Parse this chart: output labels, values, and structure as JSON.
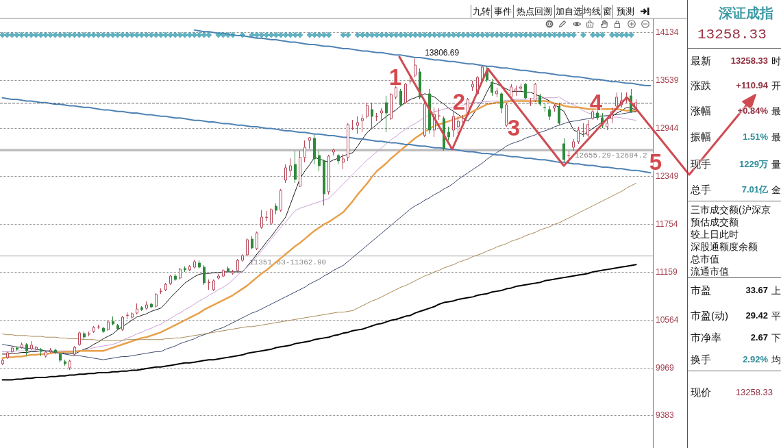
{
  "chart_data": [
    {
      "type": "candlestick",
      "categories": [
        null,
        null,
        null,
        null,
        null,
        null,
        null,
        null,
        null,
        null,
        null,
        null,
        null,
        null,
        null,
        null,
        null,
        null,
        null,
        null,
        null,
        null,
        null,
        null,
        null,
        null,
        null,
        null,
        null,
        null,
        null,
        null,
        null,
        null,
        null,
        null,
        null,
        null,
        null,
        null,
        null,
        null,
        null,
        null,
        null,
        null,
        null,
        null,
        null,
        null,
        null,
        null,
        null,
        null,
        null,
        null,
        null,
        null,
        null,
        null,
        null,
        null,
        null,
        null,
        null,
        null,
        null,
        null,
        null,
        null,
        null,
        null,
        null,
        null,
        null,
        null,
        null,
        null,
        null,
        null,
        null,
        null,
        null,
        null,
        null,
        null,
        null,
        null,
        null,
        null,
        null,
        null,
        null,
        null,
        null,
        null,
        null,
        null,
        null,
        null,
        null,
        null,
        null,
        null,
        null,
        null,
        null,
        null,
        null,
        null,
        null,
        null,
        null,
        null,
        null,
        null,
        null,
        null,
        null,
        null,
        null,
        null,
        null,
        null,
        null,
        null,
        null,
        null,
        null,
        null,
        null,
        null,
        null,
        null,
        null,
        null
      ],
      "ohlc": [
        [
          10020,
          10079,
          10003,
          10063
        ],
        [
          10097,
          10173,
          10079,
          10156
        ],
        [
          10173,
          10241,
          10156,
          10216
        ],
        [
          10216,
          10233,
          10182,
          10199
        ],
        [
          10224,
          10284,
          10207,
          10258
        ],
        [
          10258,
          10275,
          10122,
          10182
        ],
        [
          10207,
          10301,
          10190,
          10250
        ],
        [
          10199,
          10241,
          10182,
          10224
        ],
        [
          10199,
          10216,
          10114,
          10173
        ],
        [
          10114,
          10182,
          10097,
          10165
        ],
        [
          10173,
          10216,
          10156,
          10190
        ],
        [
          10190,
          10207,
          10139,
          10165
        ],
        [
          10139,
          10165,
          10037,
          10063
        ],
        [
          10046,
          10071,
          9995,
          10020
        ],
        [
          9969,
          10071,
          9944,
          10054
        ],
        [
          10139,
          10241,
          10122,
          10224
        ],
        [
          10258,
          10420,
          10241,
          10403
        ],
        [
          10394,
          10420,
          10326,
          10352
        ],
        [
          10386,
          10420,
          10360,
          10394
        ],
        [
          10420,
          10488,
          10403,
          10471
        ],
        [
          10475,
          10505,
          10454,
          10479
        ],
        [
          10462,
          10479,
          10403,
          10420
        ],
        [
          10445,
          10556,
          10428,
          10539
        ],
        [
          10547,
          10607,
          10496,
          10513
        ],
        [
          10496,
          10513,
          10437,
          10454
        ],
        [
          10445,
          10615,
          10428,
          10598
        ],
        [
          10619,
          10658,
          10573,
          10624
        ],
        [
          10598,
          10658,
          10581,
          10641
        ],
        [
          10649,
          10768,
          10632,
          10700
        ],
        [
          10717,
          10734,
          10675,
          10692
        ],
        [
          10709,
          10794,
          10692,
          10751
        ],
        [
          10760,
          10777,
          10709,
          10726
        ],
        [
          10734,
          10896,
          10717,
          10879
        ],
        [
          10917,
          10955,
          10887,
          10921
        ],
        [
          10938,
          11023,
          10921,
          11006
        ],
        [
          11015,
          11125,
          10997,
          11108
        ],
        [
          11108,
          11134,
          11049,
          11066
        ],
        [
          11083,
          11210,
          11066,
          11193
        ],
        [
          11202,
          11227,
          11159,
          11185
        ],
        [
          11185,
          11244,
          11168,
          11227
        ],
        [
          11219,
          11312,
          11202,
          11287
        ],
        [
          11270,
          11304,
          11202,
          11219
        ],
        [
          11219,
          11244,
          10997,
          11023
        ],
        [
          11027,
          11066,
          10938,
          11032
        ],
        [
          10938,
          11066,
          10921,
          11049
        ],
        [
          11083,
          11134,
          11066,
          11108
        ],
        [
          11108,
          11193,
          11091,
          11176
        ],
        [
          11202,
          11227,
          11151,
          11168
        ],
        [
          11142,
          11185,
          11125,
          11159
        ],
        [
          11176,
          11321,
          11159,
          11304
        ],
        [
          11304,
          11380,
          11287,
          11363
        ],
        [
          11372,
          11576,
          11355,
          11559
        ],
        [
          11567,
          11601,
          11440,
          11457
        ],
        [
          11448,
          11661,
          11431,
          11644
        ],
        [
          11712,
          11924,
          11695,
          11839
        ],
        [
          11835,
          11916,
          11788,
          11839
        ],
        [
          11763,
          11950,
          11746,
          11933
        ],
        [
          11975,
          12009,
          11873,
          11924
        ],
        [
          11924,
          12188,
          11907,
          12171
        ],
        [
          12298,
          12494,
          12264,
          12451
        ],
        [
          12417,
          12570,
          12349,
          12477
        ],
        [
          12494,
          12664,
          12264,
          12307
        ],
        [
          12222,
          12664,
          12213,
          12579
        ],
        [
          12579,
          12791,
          12519,
          12706
        ],
        [
          12791,
          12834,
          12689,
          12825
        ],
        [
          12817,
          12859,
          12494,
          12562
        ],
        [
          12604,
          12664,
          12409,
          12477
        ],
        [
          12536,
          12553,
          11984,
          12128
        ],
        [
          12154,
          12613,
          12119,
          12596
        ],
        [
          12647,
          12689,
          12604,
          12672
        ],
        [
          12604,
          12621,
          12494,
          12536
        ],
        [
          12519,
          12621,
          12434,
          12562
        ],
        [
          12579,
          13004,
          12536,
          12987
        ],
        [
          12940,
          13046,
          12919,
          12944
        ],
        [
          12978,
          13089,
          12876,
          13012
        ],
        [
          13037,
          13114,
          12893,
          13063
        ],
        [
          13089,
          13259,
          13063,
          13225
        ],
        [
          13174,
          13259,
          12944,
          13089
        ],
        [
          13084,
          13131,
          13029,
          13089
        ],
        [
          13131,
          13191,
          13029,
          13157
        ],
        [
          13259,
          13344,
          12893,
          13131
        ],
        [
          13063,
          13378,
          13046,
          13361
        ],
        [
          13327,
          13488,
          13301,
          13446
        ],
        [
          13403,
          13429,
          13216,
          13233
        ],
        [
          13259,
          13505,
          13242,
          13488
        ],
        [
          13526,
          13582,
          13488,
          13531
        ],
        [
          13599,
          13806.69,
          13573,
          13726
        ],
        [
          13641,
          13684,
          13301,
          13327
        ],
        [
          12851,
          13276,
          12834,
          13242
        ],
        [
          13369,
          13429,
          12876,
          12919
        ],
        [
          12919,
          13199,
          12834,
          13114
        ],
        [
          13093,
          13191,
          13046,
          13097
        ],
        [
          13063,
          13089,
          12664,
          12689
        ],
        [
          12893,
          12961,
          12791,
          12834
        ],
        [
          12919,
          13148,
          12834,
          13089
        ],
        [
          12961,
          13089,
          12808,
          13029
        ],
        [
          13021,
          13106,
          12978,
          13063
        ],
        [
          13106,
          13318,
          13089,
          13301
        ],
        [
          13454,
          13531,
          13403,
          13488
        ],
        [
          13369,
          13590,
          13352,
          13573
        ],
        [
          13539,
          13718,
          13522,
          13701
        ],
        [
          13658,
          13709,
          13514,
          13539
        ],
        [
          13514,
          13556,
          13344,
          13386
        ],
        [
          13369,
          13446,
          13327,
          13403
        ],
        [
          13369,
          13386,
          13131,
          13191
        ],
        [
          12978,
          13250,
          12961,
          13233
        ],
        [
          13327,
          13488,
          13301,
          13454
        ],
        [
          13403,
          13471,
          13344,
          13429
        ],
        [
          13437,
          13497,
          13403,
          13454
        ],
        [
          13488,
          13505,
          13301,
          13318
        ],
        [
          13254,
          13318,
          13216,
          13259
        ],
        [
          13284,
          13505,
          13267,
          13488
        ],
        [
          13344,
          13369,
          13216,
          13242
        ],
        [
          13199,
          13259,
          13148,
          13195
        ],
        [
          13174,
          13216,
          13046,
          13089
        ],
        [
          13191,
          13242,
          13148,
          13216
        ],
        [
          13216,
          13259,
          12978,
          13004
        ],
        [
          12749,
          12817,
          12527,
          12553
        ],
        [
          12600,
          12664,
          12511,
          12604
        ],
        [
          12706,
          12808,
          12664,
          12774
        ],
        [
          12774,
          12961,
          12749,
          12919
        ],
        [
          12897,
          13004,
          12834,
          12902
        ],
        [
          12859,
          13046,
          12834,
          12987
        ],
        [
          13063,
          13174,
          13046,
          13148
        ],
        [
          13131,
          13174,
          13046,
          13072
        ],
        [
          13072,
          13131,
          12944,
          12978
        ],
        [
          12961,
          13046,
          12919,
          13004
        ],
        [
          13063,
          13199,
          13004,
          13148
        ],
        [
          13216,
          13386,
          13191,
          13327
        ],
        [
          13233,
          13386,
          13199,
          13284
        ],
        [
          13301,
          13386,
          13259,
          13327
        ],
        [
          13344,
          13429,
          13131,
          13147
        ],
        [
          13191,
          13301,
          13148,
          13258.33
        ],
        null,
        null,
        null
      ],
      "series": [
        {
          "type": "line",
          "color": "#1a1a1a",
          "values": [
            10140,
            10140,
            10150,
            10150,
            10160,
            10160,
            10170,
            10170,
            10180,
            10180,
            10180,
            10170,
            10160,
            10150,
            10150,
            10140,
            10170,
            10200,
            10220,
            10260,
            10290,
            10330,
            10360,
            10390,
            10440,
            10480,
            10520,
            10560,
            10600,
            10620,
            10640,
            10670,
            10690,
            10710,
            10770,
            10840,
            10900,
            10960,
            11020,
            11060,
            11100,
            11130,
            11140,
            11140,
            11150,
            11150,
            11160,
            11160,
            11160,
            11160,
            11160,
            11230,
            11300,
            11380,
            11450,
            11530,
            11600,
            11680,
            11760,
            11840,
            12000,
            12160,
            12320,
            12410,
            12490,
            12580,
            12560,
            12540,
            12520,
            12550,
            12570,
            12600,
            12620,
            12640,
            12720,
            12810,
            12890,
            12940,
            12990,
            13040,
            13090,
            13130,
            13170,
            13220,
            13260,
            13300,
            13320,
            13350,
            13370,
            13350,
            13330,
            13280,
            13240,
            13190,
            13150,
            13110,
            13070,
            13030,
            13110,
            13200,
            13280,
            13400,
            13510,
            13490,
            13460,
            13430,
            13400,
            13400,
            13400,
            13390,
            13390,
            13360,
            13340,
            13310,
            13280,
            13240,
            13190,
            13150,
            13030,
            12920,
            12890,
            12860,
            12900,
            12940,
            12980,
            13020,
            13050,
            13090,
            13130,
            13160,
            13200,
            13190,
            13170,
            null,
            null,
            null
          ]
        },
        {
          "type": "line",
          "color": "#c9a0d6",
          "values": [
            10170,
            10170,
            10170,
            10180,
            10180,
            10180,
            10180,
            10180,
            10180,
            10180,
            10180,
            10180,
            10180,
            10180,
            10180,
            10180,
            10180,
            10190,
            10200,
            10220,
            10230,
            10240,
            10250,
            10260,
            10280,
            10310,
            10340,
            10360,
            10390,
            10410,
            10440,
            10460,
            10490,
            10510,
            10550,
            10580,
            10620,
            10650,
            10690,
            10720,
            10760,
            10800,
            10830,
            10870,
            10900,
            10940,
            10970,
            11010,
            11060,
            11120,
            11170,
            11220,
            11280,
            11350,
            11420,
            11490,
            11570,
            11640,
            11710,
            11780,
            11850,
            11920,
            11950,
            11970,
            11990,
            12010,
            12030,
            12050,
            12070,
            12130,
            12190,
            12250,
            12310,
            12370,
            12430,
            12490,
            12550,
            12600,
            12650,
            12700,
            12750,
            12800,
            12840,
            12890,
            12930,
            12970,
            13000,
            13040,
            13080,
            13110,
            13150,
            13160,
            13180,
            13190,
            13200,
            13220,
            13230,
            13250,
            13260,
            13260,
            13270,
            13270,
            13280,
            13280,
            13280,
            13290,
            13290,
            13300,
            13300,
            13300,
            13310,
            13310,
            13310,
            13320,
            13320,
            13320,
            13330,
            13290,
            13260,
            13230,
            13200,
            13160,
            13130,
            13120,
            13110,
            13100,
            13090,
            13080,
            13080,
            13070,
            13060,
            13050,
            13040,
            null,
            null,
            null
          ]
        },
        {
          "type": "line",
          "color": "#e8a04a",
          "values": [
            10090,
            10100,
            10100,
            10110,
            10110,
            10120,
            10130,
            10130,
            10140,
            10140,
            10150,
            10160,
            10160,
            10170,
            10170,
            10170,
            10180,
            10180,
            10180,
            10180,
            10180,
            10180,
            10200,
            10220,
            10240,
            10260,
            10280,
            10300,
            10320,
            10340,
            10350,
            10370,
            10390,
            10410,
            10440,
            10470,
            10500,
            10530,
            10560,
            10590,
            10620,
            10650,
            10690,
            10720,
            10750,
            10780,
            10810,
            10840,
            10870,
            10910,
            10950,
            10990,
            11040,
            11090,
            11140,
            11180,
            11230,
            11280,
            11330,
            11380,
            11430,
            11480,
            11520,
            11570,
            11620,
            11670,
            11710,
            11750,
            11780,
            11820,
            11860,
            11900,
            11970,
            12040,
            12120,
            12190,
            12260,
            12340,
            12410,
            12460,
            12510,
            12570,
            12620,
            12670,
            12720,
            12770,
            12820,
            12860,
            12900,
            12940,
            12970,
            12990,
            13010,
            13030,
            13050,
            13070,
            13090,
            13120,
            13150,
            13180,
            13210,
            13240,
            13250,
            13260,
            13260,
            13270,
            13280,
            13280,
            13280,
            13280,
            13280,
            13280,
            13280,
            13280,
            13270,
            13250,
            13240,
            13220,
            13210,
            13200,
            13200,
            13190,
            13180,
            13180,
            13180,
            13180,
            13180,
            13180,
            13180,
            13170,
            13160,
            13160,
            13150,
            null,
            null,
            null
          ]
        },
        {
          "type": "line",
          "color": "#3b4a6b",
          "values": [
            10260,
            10250,
            10240,
            10230,
            10220,
            10210,
            10210,
            10200,
            10190,
            10180,
            10170,
            10160,
            10150,
            10140,
            10130,
            10120,
            10120,
            10110,
            10100,
            10090,
            10080,
            10070,
            10080,
            10090,
            10100,
            10110,
            10110,
            10120,
            10130,
            10140,
            10150,
            10160,
            10170,
            10170,
            10200,
            10220,
            10240,
            10270,
            10290,
            10310,
            10330,
            10360,
            10380,
            10400,
            10430,
            10450,
            10470,
            10500,
            10530,
            10560,
            10590,
            10620,
            10650,
            10670,
            10700,
            10730,
            10760,
            10790,
            10820,
            10850,
            10880,
            10910,
            10940,
            10970,
            11010,
            11040,
            11070,
            11110,
            11140,
            11180,
            11210,
            11240,
            11290,
            11340,
            11390,
            11440,
            11490,
            11540,
            11590,
            11640,
            11690,
            11740,
            11790,
            11840,
            11890,
            11940,
            11980,
            12010,
            12050,
            12080,
            12120,
            12150,
            12190,
            12220,
            12260,
            12310,
            12350,
            12390,
            12430,
            12470,
            12510,
            12560,
            12600,
            12640,
            12680,
            12720,
            12750,
            12770,
            12790,
            12820,
            12840,
            12860,
            12890,
            12910,
            12930,
            12960,
            12980,
            13000,
            13020,
            13030,
            13040,
            13050,
            13060,
            13070,
            13080,
            13090,
            13100,
            13110,
            13110,
            13120,
            13130,
            13140,
            13150,
            null,
            null,
            null
          ]
        },
        {
          "type": "line",
          "color": "#a88a55",
          "values": [
            10390,
            10380,
            10380,
            10370,
            10370,
            10370,
            10360,
            10360,
            10360,
            10350,
            10350,
            10350,
            10340,
            10340,
            10330,
            10330,
            10330,
            10320,
            10320,
            10320,
            10310,
            10310,
            10310,
            10310,
            10310,
            10310,
            10320,
            10320,
            10320,
            10320,
            10320,
            10320,
            10320,
            10320,
            10330,
            10330,
            10340,
            10340,
            10350,
            10360,
            10370,
            10380,
            10390,
            10400,
            10410,
            10420,
            10430,
            10440,
            10450,
            10460,
            10470,
            10480,
            10480,
            10490,
            10500,
            10510,
            10520,
            10530,
            10540,
            10550,
            10560,
            10570,
            10580,
            10590,
            10600,
            10610,
            10620,
            10630,
            10640,
            10650,
            10660,
            10660,
            10670,
            10680,
            10710,
            10740,
            10770,
            10800,
            10820,
            10850,
            10880,
            10910,
            10940,
            10970,
            10990,
            11020,
            11050,
            11080,
            11110,
            11130,
            11160,
            11180,
            11210,
            11230,
            11250,
            11280,
            11300,
            11320,
            11350,
            11370,
            11390,
            11420,
            11440,
            11470,
            11490,
            11510,
            11540,
            11560,
            11580,
            11610,
            11630,
            11650,
            11680,
            11700,
            11720,
            11750,
            11770,
            11800,
            11830,
            11860,
            11890,
            11920,
            11950,
            11980,
            12010,
            12040,
            12070,
            12100,
            12130,
            12160,
            12200,
            12230,
            12260,
            null,
            null,
            null
          ]
        },
        {
          "type": "line",
          "color": "#000000",
          "values": [
            9820,
            9820,
            9820,
            9830,
            9830,
            9840,
            9840,
            9850,
            9850,
            9850,
            9860,
            9860,
            9870,
            9870,
            9880,
            9880,
            9890,
            9890,
            9900,
            9900,
            9910,
            9910,
            9910,
            9920,
            9920,
            9930,
            9930,
            9940,
            9940,
            9950,
            9960,
            9970,
            9980,
            9980,
            9990,
            10000,
            10010,
            10020,
            10030,
            10030,
            10040,
            10050,
            10060,
            10070,
            10070,
            10080,
            10090,
            10100,
            10110,
            10120,
            10130,
            10150,
            10160,
            10170,
            10180,
            10190,
            10200,
            10220,
            10230,
            10240,
            10250,
            10270,
            10280,
            10290,
            10300,
            10320,
            10330,
            10340,
            10350,
            10370,
            10380,
            10400,
            10410,
            10430,
            10440,
            10450,
            10470,
            10490,
            10510,
            10520,
            10540,
            10560,
            10570,
            10590,
            10610,
            10620,
            10650,
            10670,
            10690,
            10710,
            10730,
            10760,
            10780,
            10790,
            10800,
            10820,
            10830,
            10840,
            10850,
            10870,
            10880,
            10890,
            10910,
            10920,
            10930,
            10950,
            10960,
            10980,
            10990,
            11000,
            11010,
            11020,
            11030,
            11050,
            11060,
            11070,
            11080,
            11090,
            11100,
            11110,
            11120,
            11130,
            11140,
            11160,
            11170,
            11180,
            11190,
            11200,
            11210,
            11220,
            11230,
            11240,
            11250,
            null,
            null,
            null
          ]
        },
        {
          "type": "line",
          "color": "#4f82b3",
          "values": [
            null,
            null,
            null,
            null,
            null,
            null,
            null,
            null,
            null,
            null,
            null,
            null,
            null,
            null,
            null,
            null,
            null,
            null,
            null,
            null,
            null,
            null,
            null,
            null,
            null,
            null,
            null,
            null,
            null,
            null,
            null,
            null,
            null,
            null,
            null,
            null,
            null,
            null,
            null,
            null,
            14160,
            14150,
            14140,
            14140,
            14130,
            14120,
            14120,
            14110,
            14100,
            14090,
            14090,
            14080,
            14070,
            14060,
            14060,
            14050,
            14040,
            14040,
            14030,
            14020,
            14010,
            14010,
            14000,
            13990,
            13980,
            13980,
            13970,
            13960,
            13960,
            13950,
            13940,
            13930,
            13930,
            13920,
            13910,
            13900,
            13900,
            13890,
            13880,
            13880,
            13870,
            13860,
            13850,
            13850,
            13840,
            13830,
            13820,
            13820,
            13810,
            13800,
            13790,
            13790,
            13780,
            13770,
            13770,
            13760,
            13750,
            13740,
            13740,
            13730,
            13720,
            13710,
            13710,
            13700,
            13690,
            13690,
            13680,
            13670,
            13660,
            13660,
            13650,
            13640,
            13630,
            13630,
            13620,
            13610,
            13600,
            13600,
            13590,
            13580,
            13580,
            13570,
            13560,
            13550,
            13550,
            13540,
            13530,
            13520,
            13520,
            13510,
            13500,
            13500,
            13490,
            13480,
            13470,
            13470
          ]
        },
        {
          "type": "line",
          "color": "#4f82b3",
          "values": [
            13320,
            13310,
            13300,
            13300,
            13290,
            13280,
            13280,
            13270,
            13260,
            13260,
            13250,
            13240,
            13240,
            13230,
            13220,
            13220,
            13210,
            13200,
            13200,
            13190,
            13180,
            13170,
            13170,
            13160,
            13150,
            13150,
            13140,
            13130,
            13130,
            13120,
            13110,
            13110,
            13100,
            13090,
            13090,
            13080,
            13070,
            13070,
            13060,
            13050,
            13040,
            13040,
            13030,
            13020,
            13020,
            13010,
            13000,
            13000,
            12990,
            12980,
            12980,
            12970,
            12960,
            12960,
            12950,
            12940,
            12940,
            12930,
            12920,
            12910,
            12910,
            12900,
            12890,
            12890,
            12880,
            12870,
            12870,
            12860,
            12850,
            12850,
            12840,
            12830,
            12830,
            12820,
            12810,
            12810,
            12800,
            12790,
            12780,
            12780,
            12770,
            12760,
            12760,
            12750,
            12740,
            12740,
            12730,
            12720,
            12720,
            12710,
            12700,
            12700,
            12690,
            12680,
            12680,
            12670,
            12660,
            12650,
            12650,
            12640,
            12630,
            12630,
            12620,
            12610,
            12610,
            12600,
            12590,
            12590,
            12580,
            12570,
            12570,
            12560,
            12550,
            12550,
            12540,
            12530,
            12520,
            12520,
            12510,
            12500,
            12500,
            12490,
            12480,
            12480,
            12470,
            12460,
            12460,
            12450,
            12440,
            12440,
            12430,
            12420,
            12420,
            12410,
            12400,
            12390
          ]
        },
        {
          "type": "scatter",
          "color": "#3a9db2",
          "marker": "diamond",
          "values": [
            14100,
            14100,
            14100,
            14100,
            14100,
            14100,
            14100,
            14100,
            14100,
            14100,
            14100,
            14100,
            14100,
            14100,
            14100,
            14100,
            14100,
            14100,
            14100,
            14100,
            14100,
            14100,
            14100,
            14100,
            14100,
            14100,
            14100,
            14100,
            14100,
            14100,
            14100,
            14100,
            14100,
            14100,
            14100,
            14100,
            14100,
            14100,
            14100,
            14100,
            14100,
            14100,
            14100,
            14100,
            null,
            14100,
            14100,
            14100,
            14100,
            null,
            14100,
            null,
            14100,
            14100,
            14100,
            14100,
            14100,
            14100,
            14100,
            14100,
            14100,
            14100,
            14100,
            null,
            14100,
            14100,
            14100,
            14100,
            14100,
            null,
            null,
            14100,
            14100,
            null,
            14100,
            14100,
            14100,
            14100,
            14100,
            14100,
            14100,
            14100,
            14100,
            14100,
            14100,
            14100,
            14100,
            14100,
            14100,
            14100,
            14100,
            14100,
            14100,
            14100,
            14100,
            14100,
            14100,
            14100,
            14100,
            14100,
            14100,
            14100,
            14100,
            14100,
            14100,
            14100,
            14100,
            14100,
            14100,
            14100,
            14100,
            14100,
            14100,
            14100,
            14100,
            14100,
            14100,
            14100,
            14100,
            14100,
            null,
            14100,
            null,
            14100,
            14100,
            14100,
            null,
            14100,
            14100,
            14100,
            14100,
            14100,
            null,
            null,
            null,
            null
          ]
        }
      ],
      "ylim": [
        8975,
        14295
      ],
      "yticks": [
        14134,
        13539,
        12944,
        12349,
        11754,
        11159,
        10564,
        9969,
        9383
      ],
      "grid": "y",
      "tick_labels": "y",
      "ref_lines": [
        {
          "axis": "y",
          "value": 13258.33,
          "color": "#555555",
          "line_style": "dashed"
        }
      ],
      "bands": [
        {
          "axis": "y",
          "from": 11351.63,
          "to": 11362.9,
          "label": "11351.63-11362.90",
          "color": "#bdbdbd"
        },
        {
          "axis": "y",
          "from": 12655.29,
          "to": 12684.2,
          "label": "12655.29-12684.2",
          "color": "#bdbdbd"
        }
      ],
      "annotations": [
        "1",
        "2",
        "3",
        "4",
        "5",
        {
          "text": "13806.69",
          "y": 13806.69
        },
        "九转",
        "事件",
        "热点回溯",
        "加自选",
        "均线",
        "窗",
        "预测"
      ]
    },
    {
      "type": "other",
      "title": "深证成指",
      "annotations": [
        "13258.33",
        "最新",
        "13258.33",
        "时",
        "涨跌",
        "+110.94",
        "开",
        "涨幅",
        "+0.84%",
        "最",
        "振幅",
        "1.51%",
        "最",
        "现手",
        "1229万",
        "量",
        "总手",
        "7.01亿",
        "金",
        "三市成交额(沪深京",
        "预估成交额",
        "较上日此时",
        "深股通额度余额",
        "总市值",
        "流通市值",
        "市盈",
        "33.67",
        "上",
        "市盈(动)",
        "29.42",
        "平",
        "市净率",
        "2.67",
        "下",
        "换手",
        "2.92%",
        "均",
        "现价",
        "13258.33"
      ]
    }
  ]
}
